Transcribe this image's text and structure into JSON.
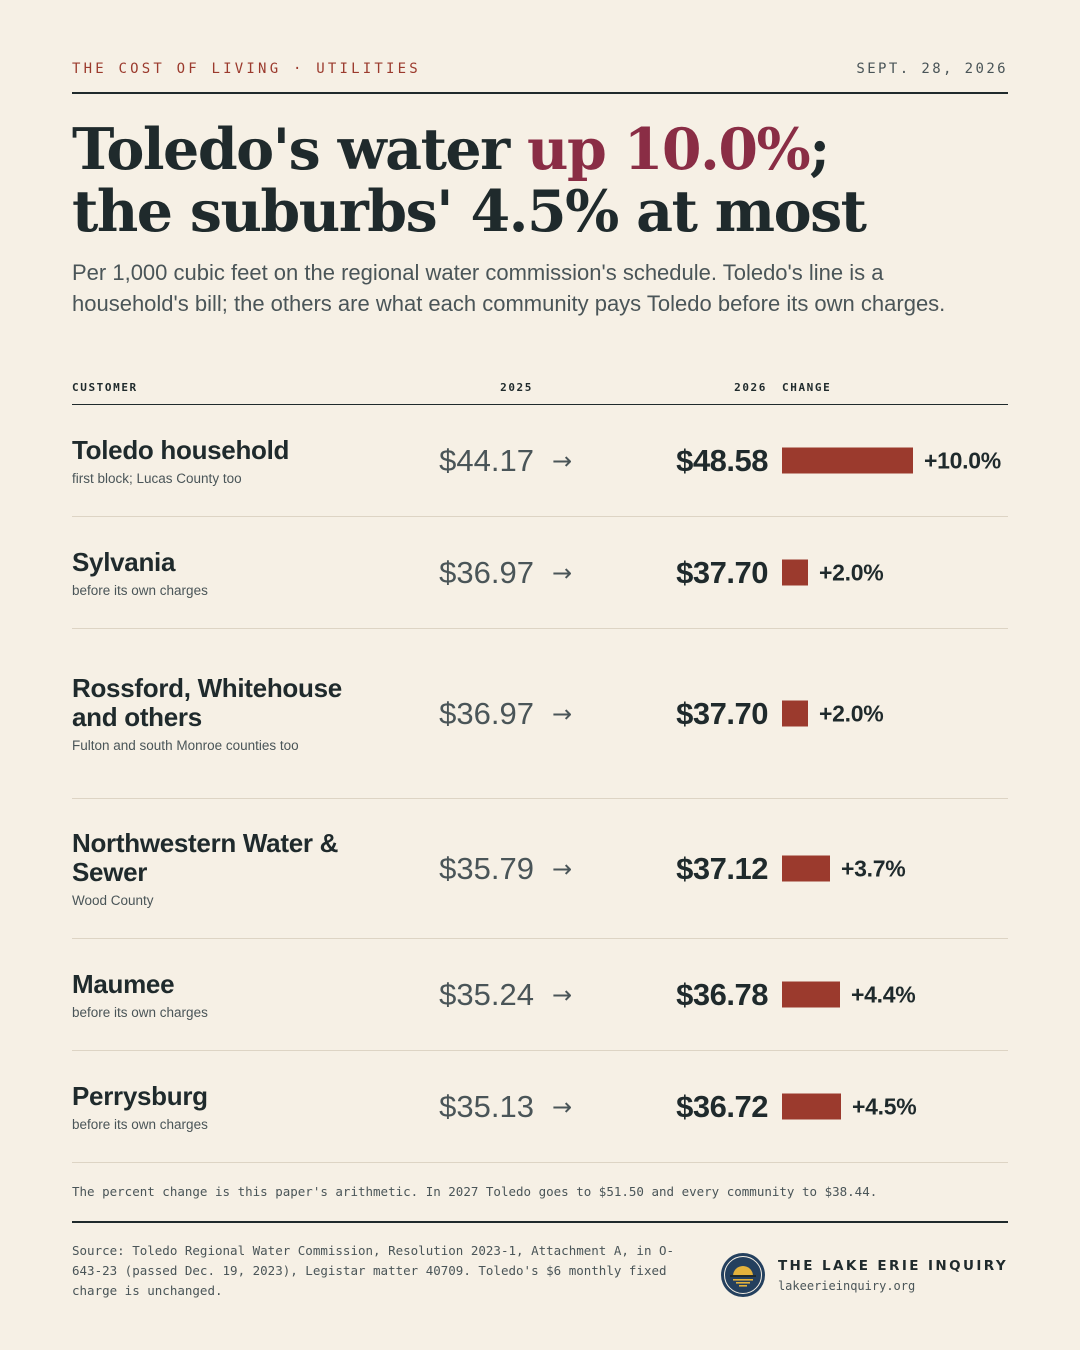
{
  "kicker": "THE COST OF LIVING · UTILITIES",
  "dateline": "SEPT. 28, 2026",
  "headline": {
    "part1": "Toledo's water ",
    "accent": "up 10.0%",
    "part2": ";",
    "line2": "the suburbs' 4.5% at most"
  },
  "dek": "Per 1,000 cubic feet on the regional water commission's schedule. Toledo's line is a household's bill; the others are what each community pays Toledo before its own charges.",
  "colors": {
    "bar": "#9b3a2d",
    "accent": "#8a2d45",
    "ink": "#1f2a2c",
    "background": "#f6f0e5"
  },
  "chart_data": {
    "type": "table",
    "columns": [
      "CUSTOMER",
      "2025",
      "2026",
      "CHANGE"
    ],
    "rows": [
      {
        "customer": "Toledo household",
        "note": "first block; Lucas County too",
        "y2025_label": "$44.17",
        "y2026_label": "$48.58",
        "y2025": 44.17,
        "y2026": 48.58,
        "change": 10.0,
        "change_label": "+10.0%"
      },
      {
        "customer": "Sylvania",
        "note": "before its own charges",
        "y2025_label": "$36.97",
        "y2026_label": "$37.70",
        "y2025": 36.97,
        "y2026": 37.7,
        "change": 2.0,
        "change_label": "+2.0%"
      },
      {
        "customer": "Rossford, Whitehouse and others",
        "note": "Fulton and south Monroe counties too",
        "y2025_label": "$36.97",
        "y2026_label": "$37.70",
        "y2025": 36.97,
        "y2026": 37.7,
        "change": 2.0,
        "change_label": "+2.0%"
      },
      {
        "customer": "Northwestern Water & Sewer",
        "note": "Wood County",
        "y2025_label": "$35.79",
        "y2026_label": "$37.12",
        "y2025": 35.79,
        "y2026": 37.12,
        "change": 3.7,
        "change_label": "+3.7%"
      },
      {
        "customer": "Maumee",
        "note": "before its own charges",
        "y2025_label": "$35.24",
        "y2026_label": "$36.78",
        "y2025": 35.24,
        "y2026": 36.78,
        "change": 4.4,
        "change_label": "+4.4%"
      },
      {
        "customer": "Perrysburg",
        "note": "before its own charges",
        "y2025_label": "$35.13",
        "y2026_label": "$36.72",
        "y2025": 35.13,
        "y2026": 36.72,
        "change": 4.5,
        "change_label": "+4.5%"
      }
    ],
    "arrow": "→"
  },
  "footnote": "The percent change is this paper's arithmetic. In 2027 Toledo goes to $51.50 and every community to $38.44.",
  "source": "Source: Toledo Regional Water Commission, Resolution 2023-1, Attachment A, in O-643-23 (passed Dec. 19, 2023), Legistar matter 40709. Toledo's $6 monthly fixed charge is unchanged.",
  "brand": {
    "name": "THE LAKE ERIE INQUIRY",
    "url": "lakeerieinquiry.org",
    "logo_icon": "lake-sunset-icon"
  }
}
